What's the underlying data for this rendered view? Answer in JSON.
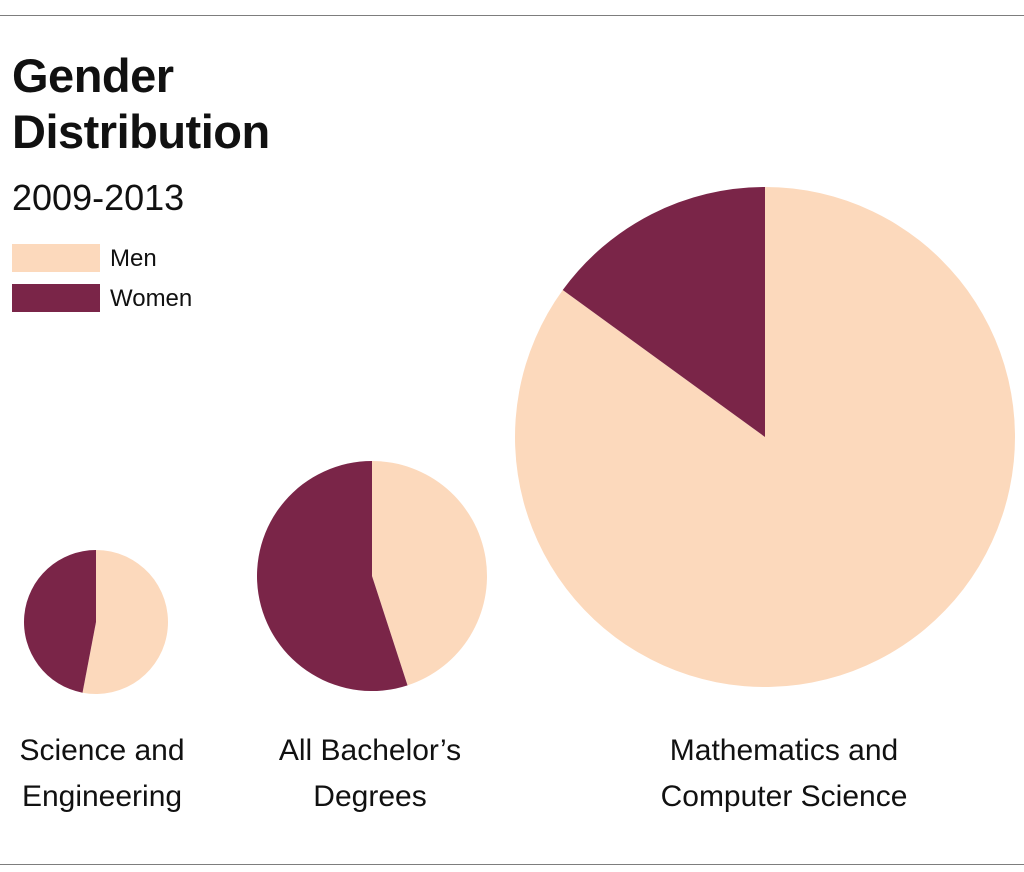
{
  "colors": {
    "men": "#fcd9bc",
    "women": "#7a2548",
    "rule": "#7d7d7d",
    "text": "#111111"
  },
  "header": {
    "title_line1": "Gender",
    "title_line2": "Distribution",
    "subtitle": "2009-2013"
  },
  "legend": {
    "items": [
      {
        "label": "Men",
        "color": "#fcd9bc"
      },
      {
        "label": "Women",
        "color": "#7a2548"
      }
    ]
  },
  "chart_data": {
    "type": "pie",
    "title": "Gender Distribution",
    "subtitle": "2009-2013",
    "legend_position": "top-left",
    "series_names": [
      "Men",
      "Women"
    ],
    "pies": [
      {
        "category": "Science and Engineering",
        "label_lines": [
          "Science and",
          "Engineering"
        ],
        "men": 53,
        "women": 47
      },
      {
        "category": "All Bachelor's Degrees",
        "label_lines": [
          "All Bachelor’s",
          "Degrees"
        ],
        "men": 45,
        "women": 55
      },
      {
        "category": "Mathematics and Computer Science",
        "label_lines": [
          "Mathematics and",
          "Computer Science"
        ],
        "men": 85,
        "women": 15
      }
    ]
  }
}
